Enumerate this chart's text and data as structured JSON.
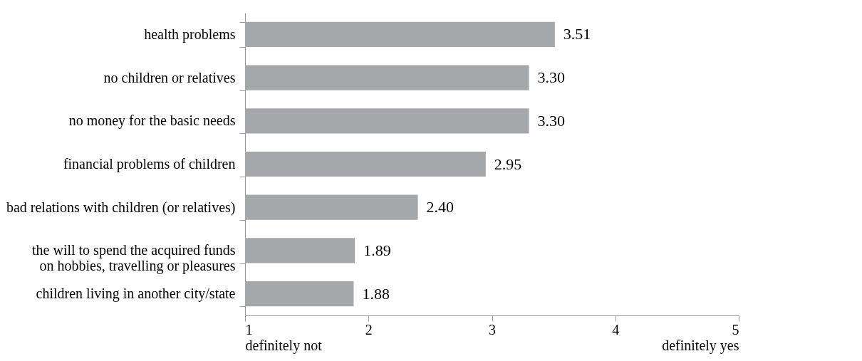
{
  "chart_data": {
    "type": "bar",
    "orientation": "horizontal",
    "categories": [
      "health problems",
      "no children or relatives",
      "no money for the basic needs",
      "financial problems of children",
      "bad relations with children (or relatives)",
      "the will to spend the acquired funds\non hobbies, travelling or pleasures",
      "children living in another city/state"
    ],
    "values": [
      3.51,
      3.3,
      3.3,
      2.95,
      2.4,
      1.89,
      1.88
    ],
    "value_labels": [
      "3.51",
      "3.30",
      "3.30",
      "2.95",
      "2.40",
      "1.89",
      "1.88"
    ],
    "color": "#a6a7aa",
    "xlim": [
      1,
      5
    ],
    "xticks": [
      {
        "value": 1,
        "label": "1\ndefinitely not"
      },
      2,
      3,
      4,
      {
        "value": 5,
        "label": "5\ndefinitely yes"
      }
    ],
    "grid": false
  }
}
